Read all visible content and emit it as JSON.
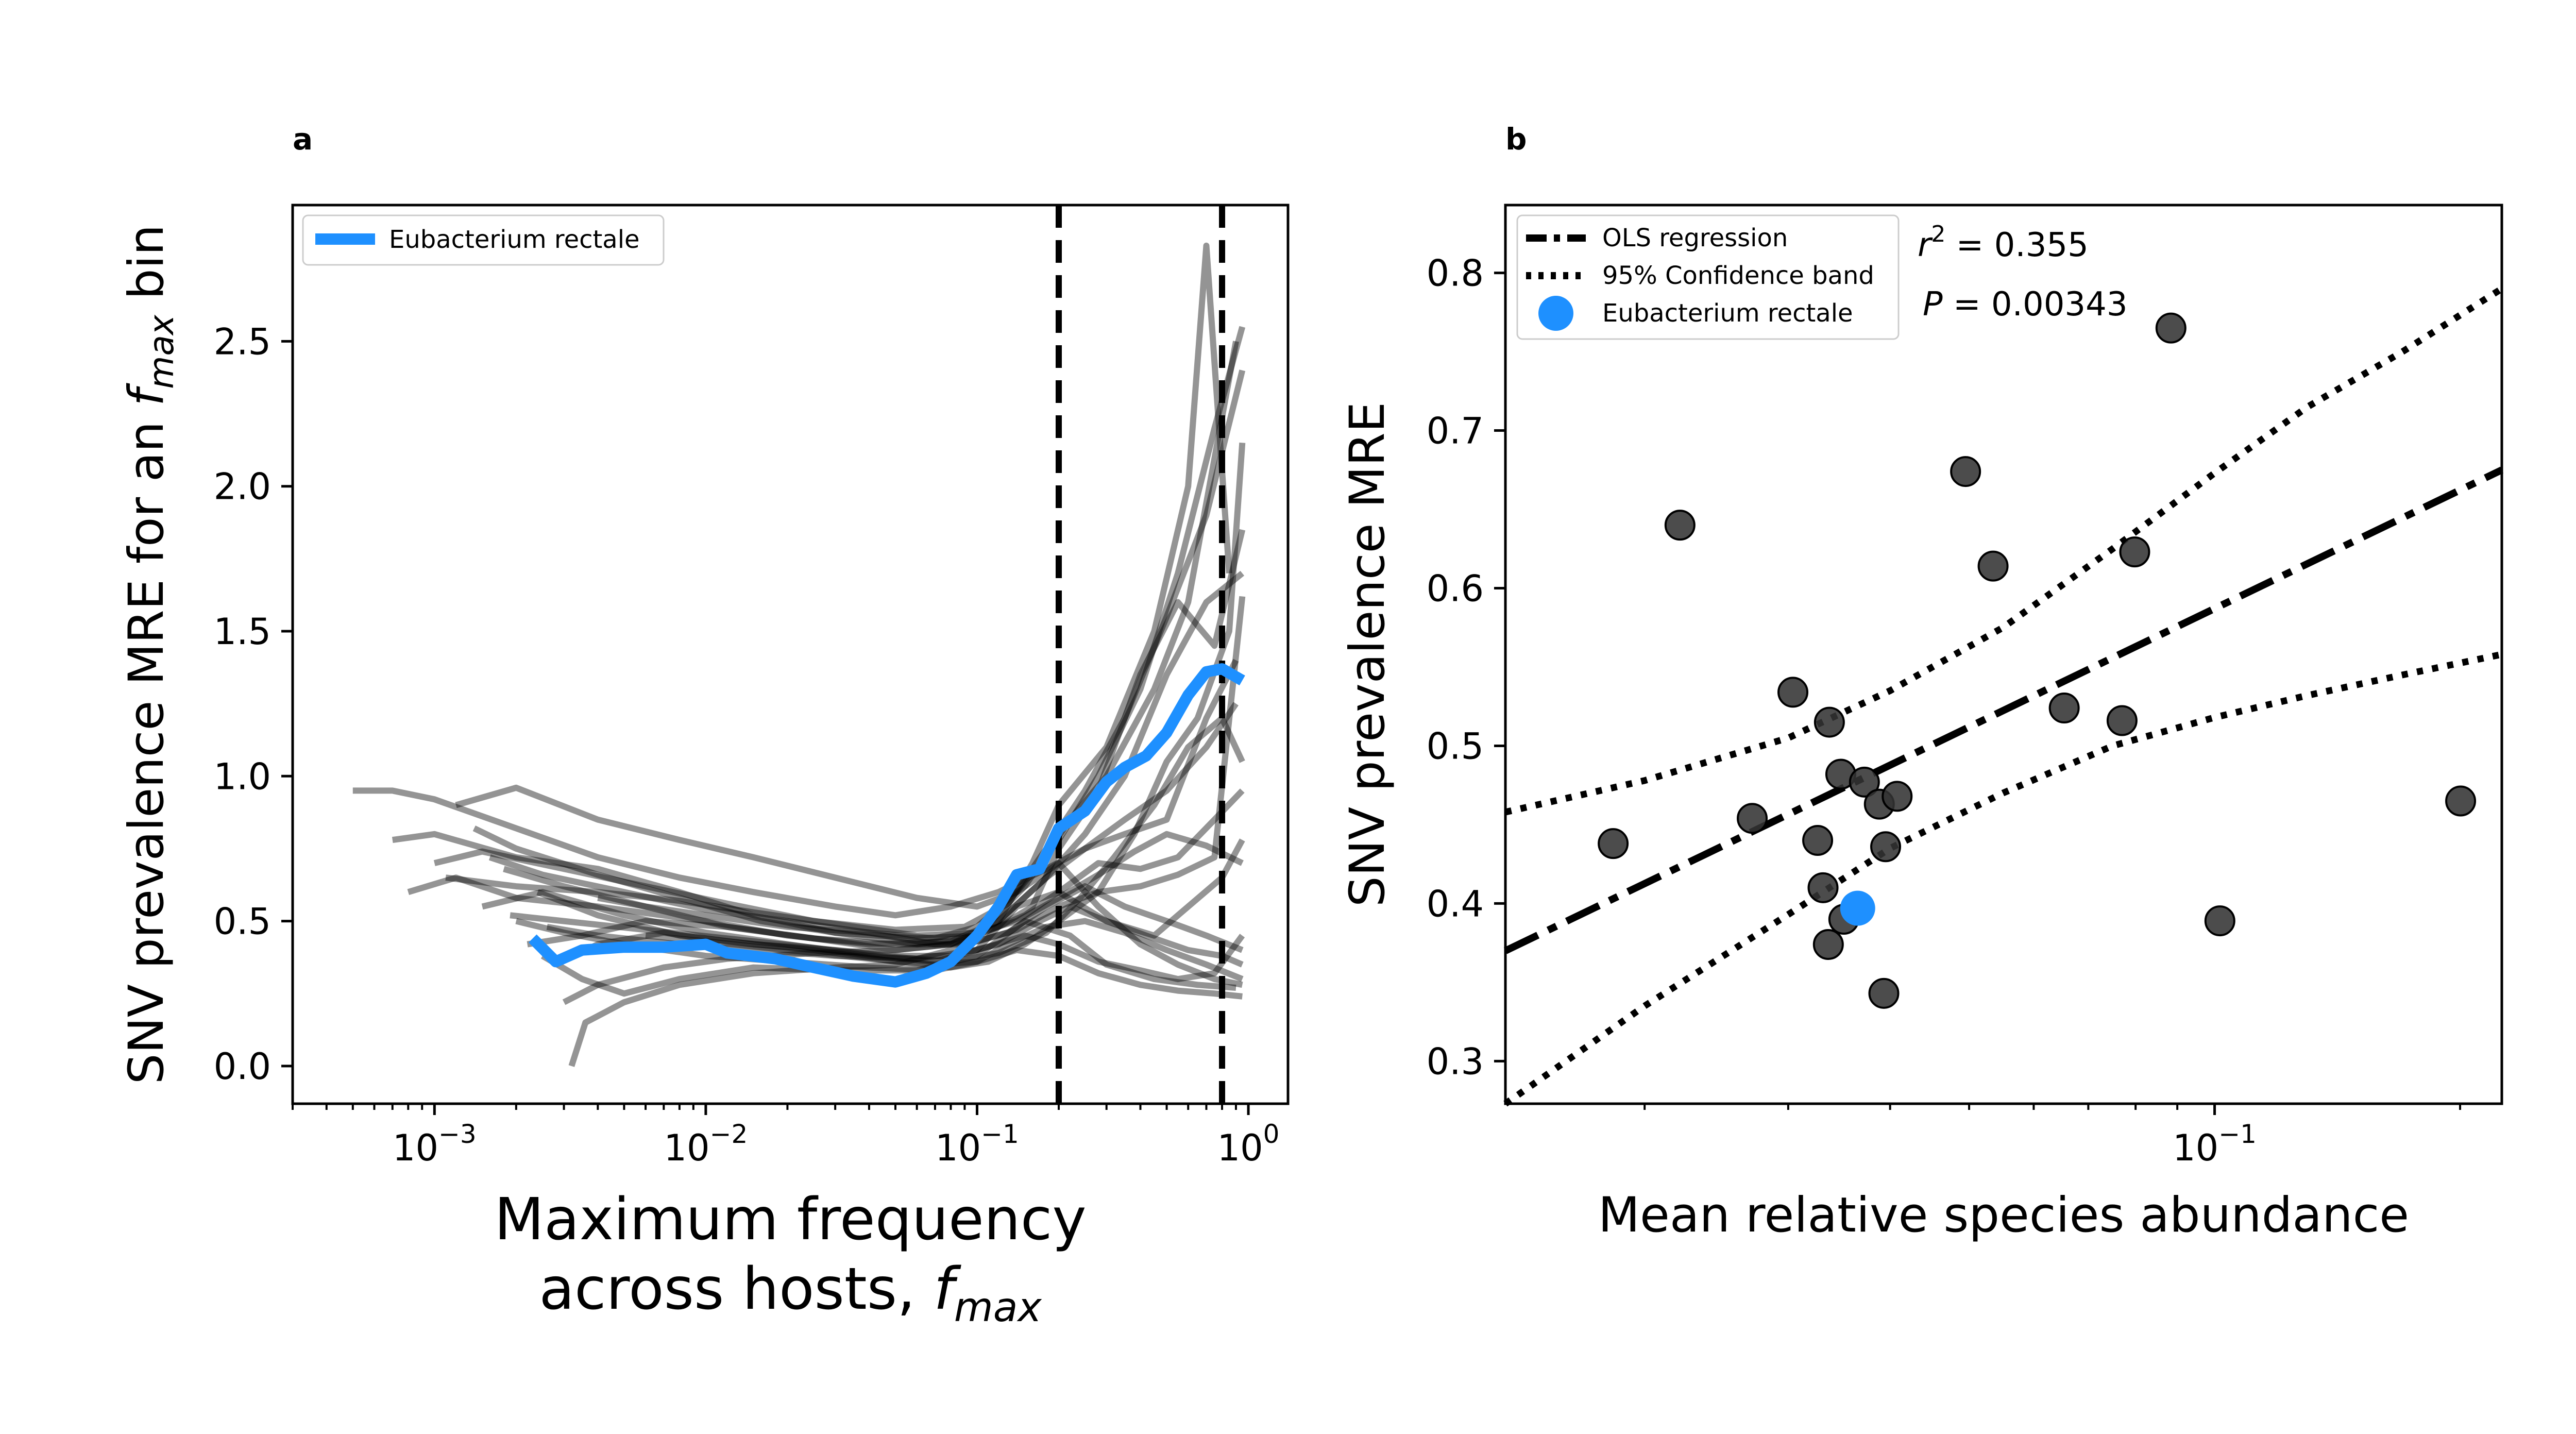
{
  "colors": {
    "highlight": "#1E90FF",
    "gray_lines": "#000000",
    "points": "#333333",
    "axes": "#000000"
  },
  "panel_a": {
    "label": "a",
    "ylabel_prefix": "SNV prevalence MRE for an ",
    "ylabel_var": "f",
    "ylabel_sub": "max",
    "ylabel_suffix": " bin",
    "xlabel_line1": "Maximum frequency",
    "xlabel_line2_prefix": "across hosts, ",
    "xlabel_var": "f",
    "xlabel_sub": "max",
    "legend_label": "Eubacterium rectale"
  },
  "panel_b": {
    "label": "b",
    "ylabel": "SNV prevalence MRE",
    "xlabel": "Mean relative species abundance",
    "legend_ols": "OLS regression",
    "legend_ci": "95% Confidence band",
    "legend_species": "Eubacterium rectale",
    "r2_prefix": "r",
    "r2_value": " = 0.355",
    "p_prefix": "P",
    "p_value": " = 0.00343"
  },
  "chart_data": [
    {
      "type": "line",
      "xscale": "log",
      "xlim": [
        0.0003,
        1.4
      ],
      "ylim": [
        -0.13,
        2.97
      ],
      "xticks": [
        0.001,
        0.01,
        0.1,
        1
      ],
      "xtick_labels": [
        {
          "base": "10",
          "exp": "−3"
        },
        {
          "base": "10",
          "exp": "−2"
        },
        {
          "base": "10",
          "exp": "−1"
        },
        {
          "base": "10",
          "exp": "0"
        }
      ],
      "yticks": [
        0.0,
        0.5,
        1.0,
        1.5,
        2.0,
        2.5
      ],
      "ytick_labels": [
        "0.0",
        "0.5",
        "1.0",
        "1.5",
        "2.0",
        "2.5"
      ],
      "vlines": [
        0.2,
        0.8
      ],
      "grid": false,
      "legend_position": "top-left",
      "highlight_series": {
        "name": "Eubacterium rectale",
        "x": [
          0.0023,
          0.0028,
          0.0035,
          0.005,
          0.007,
          0.01,
          0.012,
          0.018,
          0.025,
          0.035,
          0.05,
          0.065,
          0.08,
          0.1,
          0.12,
          0.14,
          0.17,
          0.2,
          0.25,
          0.3,
          0.35,
          0.42,
          0.5,
          0.6,
          0.7,
          0.8,
          0.95
        ],
        "y": [
          0.44,
          0.36,
          0.4,
          0.41,
          0.41,
          0.42,
          0.39,
          0.37,
          0.34,
          0.31,
          0.29,
          0.32,
          0.36,
          0.45,
          0.55,
          0.66,
          0.68,
          0.82,
          0.88,
          0.98,
          1.03,
          1.07,
          1.15,
          1.28,
          1.36,
          1.37,
          1.33
        ]
      },
      "background_series": [
        {
          "x": [
            0.0005,
            0.0007,
            0.001,
            0.002,
            0.004,
            0.008,
            0.015,
            0.03,
            0.05,
            0.08,
            0.12,
            0.18,
            0.25,
            0.35,
            0.5,
            0.7,
            0.9
          ],
          "y": [
            0.95,
            0.95,
            0.92,
            0.82,
            0.72,
            0.65,
            0.6,
            0.55,
            0.52,
            0.55,
            0.6,
            0.68,
            0.75,
            0.85,
            0.95,
            1.1,
            1.25
          ]
        },
        {
          "x": [
            0.0007,
            0.001,
            0.002,
            0.004,
            0.008,
            0.015,
            0.03,
            0.06,
            0.1,
            0.15,
            0.22,
            0.3,
            0.45,
            0.6,
            0.9
          ],
          "y": [
            0.78,
            0.8,
            0.72,
            0.68,
            0.6,
            0.52,
            0.46,
            0.42,
            0.45,
            0.62,
            0.85,
            1.0,
            1.3,
            1.6,
            2.5
          ]
        },
        {
          "x": [
            0.0008,
            0.0012,
            0.002,
            0.004,
            0.01,
            0.02,
            0.04,
            0.08,
            0.12,
            0.16,
            0.2,
            0.3,
            0.45,
            0.6,
            0.7,
            0.85
          ],
          "y": [
            0.6,
            0.65,
            0.58,
            0.55,
            0.5,
            0.45,
            0.42,
            0.43,
            0.5,
            0.7,
            0.9,
            1.1,
            1.5,
            2.0,
            2.83,
            1.7
          ]
        },
        {
          "x": [
            0.001,
            0.0015,
            0.003,
            0.006,
            0.012,
            0.025,
            0.05,
            0.09,
            0.13,
            0.18,
            0.25,
            0.35,
            0.5,
            0.7,
            0.95
          ],
          "y": [
            0.7,
            0.74,
            0.68,
            0.62,
            0.56,
            0.5,
            0.47,
            0.48,
            0.56,
            0.75,
            0.95,
            1.2,
            1.55,
            1.9,
            2.4
          ]
        },
        {
          "x": [
            0.0012,
            0.002,
            0.004,
            0.008,
            0.015,
            0.03,
            0.06,
            0.1,
            0.14,
            0.2,
            0.28,
            0.4,
            0.55,
            0.75,
            0.95
          ],
          "y": [
            0.9,
            0.96,
            0.85,
            0.78,
            0.72,
            0.65,
            0.58,
            0.55,
            0.6,
            0.78,
            1.0,
            1.3,
            1.7,
            2.2,
            2.55
          ]
        },
        {
          "x": [
            0.0015,
            0.0025,
            0.005,
            0.01,
            0.02,
            0.04,
            0.07,
            0.1,
            0.14,
            0.2,
            0.3,
            0.45,
            0.6,
            0.8,
            0.95
          ],
          "y": [
            0.55,
            0.6,
            0.52,
            0.46,
            0.42,
            0.38,
            0.36,
            0.4,
            0.55,
            0.6,
            0.5,
            0.45,
            0.55,
            0.65,
            0.78
          ]
        },
        {
          "x": [
            0.0018,
            0.003,
            0.006,
            0.012,
            0.025,
            0.05,
            0.08,
            0.12,
            0.18,
            0.25,
            0.35,
            0.5,
            0.7,
            0.9
          ],
          "y": [
            0.68,
            0.62,
            0.55,
            0.48,
            0.44,
            0.4,
            0.42,
            0.5,
            0.65,
            0.75,
            0.8,
            0.85,
            1.2,
            1.4
          ]
        },
        {
          "x": [
            0.002,
            0.003,
            0.005,
            0.01,
            0.02,
            0.04,
            0.07,
            0.1,
            0.13,
            0.18,
            0.25,
            0.35,
            0.5,
            0.7,
            0.95
          ],
          "y": [
            0.5,
            0.46,
            0.42,
            0.38,
            0.36,
            0.34,
            0.33,
            0.36,
            0.42,
            0.48,
            0.5,
            0.46,
            0.4,
            0.35,
            0.3
          ]
        },
        {
          "x": [
            0.0022,
            0.0035,
            0.006,
            0.012,
            0.025,
            0.05,
            0.09,
            0.13,
            0.18,
            0.25,
            0.35,
            0.5,
            0.7,
            0.95
          ],
          "y": [
            0.42,
            0.45,
            0.5,
            0.48,
            0.44,
            0.42,
            0.42,
            0.46,
            0.55,
            0.62,
            0.55,
            0.5,
            0.45,
            0.4
          ]
        },
        {
          "x": [
            0.0025,
            0.0035,
            0.005,
            0.008,
            0.015,
            0.03,
            0.06,
            0.1,
            0.15,
            0.22,
            0.3,
            0.45,
            0.65,
            0.9
          ],
          "y": [
            0.38,
            0.3,
            0.25,
            0.3,
            0.34,
            0.33,
            0.33,
            0.38,
            0.5,
            0.45,
            0.35,
            0.3,
            0.28,
            0.27
          ]
        },
        {
          "x": [
            0.0032,
            0.0036,
            0.005,
            0.008,
            0.015,
            0.03,
            0.05,
            0.08,
            0.12,
            0.18,
            0.25,
            0.35,
            0.5,
            0.7,
            0.95
          ],
          "y": [
            0.0,
            0.15,
            0.22,
            0.28,
            0.32,
            0.34,
            0.35,
            0.4,
            0.5,
            0.65,
            0.8,
            1.0,
            1.35,
            1.6,
            1.7
          ]
        },
        {
          "x": [
            0.003,
            0.004,
            0.007,
            0.012,
            0.025,
            0.05,
            0.08,
            0.12,
            0.16,
            0.2,
            0.28,
            0.4,
            0.55,
            0.75,
            0.95
          ],
          "y": [
            0.22,
            0.28,
            0.34,
            0.37,
            0.39,
            0.4,
            0.42,
            0.48,
            0.55,
            0.75,
            0.95,
            1.35,
            1.6,
            1.45,
            1.85
          ]
        },
        {
          "x": [
            0.0014,
            0.002,
            0.004,
            0.008,
            0.016,
            0.03,
            0.06,
            0.1,
            0.15,
            0.2,
            0.28,
            0.4,
            0.55,
            0.75,
            0.95
          ],
          "y": [
            0.82,
            0.75,
            0.66,
            0.58,
            0.5,
            0.46,
            0.44,
            0.45,
            0.52,
            0.6,
            0.7,
            0.68,
            0.72,
            0.85,
            0.95
          ]
        },
        {
          "x": [
            0.0016,
            0.0025,
            0.005,
            0.01,
            0.02,
            0.04,
            0.07,
            0.1,
            0.14,
            0.2,
            0.28,
            0.4,
            0.55,
            0.75,
            0.95
          ],
          "y": [
            0.72,
            0.66,
            0.6,
            0.54,
            0.5,
            0.46,
            0.42,
            0.43,
            0.47,
            0.55,
            0.6,
            0.62,
            0.66,
            0.72,
            1.62
          ]
        },
        {
          "x": [
            0.0024,
            0.004,
            0.008,
            0.015,
            0.03,
            0.05,
            0.08,
            0.12,
            0.17,
            0.22,
            0.3,
            0.42,
            0.6,
            0.8,
            0.95
          ],
          "y": [
            0.6,
            0.52,
            0.45,
            0.42,
            0.4,
            0.38,
            0.38,
            0.42,
            0.5,
            0.55,
            0.5,
            0.45,
            0.4,
            0.38,
            0.35
          ]
        },
        {
          "x": [
            0.0028,
            0.004,
            0.007,
            0.012,
            0.025,
            0.05,
            0.08,
            0.11,
            0.15,
            0.2,
            0.28,
            0.38,
            0.5,
            0.65,
            0.85,
            0.95
          ],
          "y": [
            0.35,
            0.42,
            0.46,
            0.43,
            0.4,
            0.36,
            0.34,
            0.36,
            0.42,
            0.5,
            0.6,
            0.8,
            1.05,
            1.2,
            1.5,
            2.15
          ]
        },
        {
          "x": [
            0.004,
            0.006,
            0.01,
            0.02,
            0.04,
            0.07,
            0.1,
            0.14,
            0.2,
            0.28,
            0.4,
            0.55,
            0.75,
            0.95
          ],
          "y": [
            0.58,
            0.55,
            0.52,
            0.48,
            0.46,
            0.44,
            0.48,
            0.6,
            0.7,
            0.55,
            0.42,
            0.35,
            0.3,
            0.28
          ]
        },
        {
          "x": [
            0.006,
            0.01,
            0.02,
            0.04,
            0.07,
            0.1,
            0.14,
            0.2,
            0.28,
            0.4,
            0.55,
            0.75,
            0.95
          ],
          "y": [
            0.45,
            0.43,
            0.4,
            0.37,
            0.35,
            0.36,
            0.4,
            0.38,
            0.32,
            0.28,
            0.26,
            0.25,
            0.24
          ]
        },
        {
          "x": [
            0.0019,
            0.003,
            0.006,
            0.012,
            0.024,
            0.045,
            0.08,
            0.12,
            0.18,
            0.24,
            0.32,
            0.45,
            0.6,
            0.8,
            0.95
          ],
          "y": [
            0.52,
            0.5,
            0.47,
            0.44,
            0.41,
            0.38,
            0.36,
            0.39,
            0.46,
            0.58,
            0.72,
            0.9,
            1.1,
            1.2,
            1.05
          ]
        },
        {
          "x": [
            0.0011,
            0.002,
            0.004,
            0.008,
            0.015,
            0.03,
            0.06,
            0.1,
            0.14,
            0.2,
            0.28,
            0.38,
            0.5,
            0.7,
            0.95
          ],
          "y": [
            0.65,
            0.62,
            0.6,
            0.57,
            0.53,
            0.49,
            0.45,
            0.46,
            0.5,
            0.58,
            0.66,
            0.74,
            0.8,
            0.76,
            0.7
          ]
        },
        {
          "x": [
            0.0026,
            0.004,
            0.008,
            0.016,
            0.03,
            0.06,
            0.1,
            0.15,
            0.2,
            0.28,
            0.4,
            0.55,
            0.75,
            0.95
          ],
          "y": [
            0.48,
            0.45,
            0.42,
            0.4,
            0.38,
            0.37,
            0.4,
            0.45,
            0.42,
            0.36,
            0.33,
            0.3,
            0.32,
            0.45
          ]
        }
      ]
    },
    {
      "type": "scatter",
      "xscale": "log",
      "xlim": [
        0.0135,
        0.225
      ],
      "ylim": [
        0.273,
        0.843
      ],
      "xticks": [
        0.1
      ],
      "xtick_labels": [
        {
          "base": "10",
          "exp": "−1"
        }
      ],
      "yticks": [
        0.3,
        0.4,
        0.5,
        0.6,
        0.7,
        0.8
      ],
      "ytick_labels": [
        "0.3",
        "0.4",
        "0.5",
        "0.6",
        "0.7",
        "0.8"
      ],
      "grid": false,
      "legend_position": "top-left",
      "points": {
        "x": [
          0.0183,
          0.0221,
          0.0271,
          0.0304,
          0.0326,
          0.0331,
          0.0336,
          0.0337,
          0.0348,
          0.0351,
          0.0372,
          0.0388,
          0.0393,
          0.0395,
          0.0408,
          0.0495,
          0.0535,
          0.0654,
          0.077,
          0.0798,
          0.0884,
          0.1015,
          0.2003
        ],
        "y": [
          0.438,
          0.64,
          0.454,
          0.534,
          0.44,
          0.41,
          0.374,
          0.515,
          0.482,
          0.39,
          0.477,
          0.463,
          0.343,
          0.436,
          0.468,
          0.674,
          0.614,
          0.524,
          0.516,
          0.623,
          0.765,
          0.389,
          0.465
        ]
      },
      "highlight_point": {
        "name": "Eubacterium rectale",
        "x": 0.0365,
        "y": 0.397
      },
      "ols_line": {
        "x": [
          0.0135,
          0.225
        ],
        "y": [
          0.37,
          0.675
        ]
      },
      "ci_upper": {
        "x": [
          0.0135,
          0.02,
          0.03,
          0.04,
          0.055,
          0.075,
          0.1,
          0.13,
          0.17,
          0.225
        ],
        "y": [
          0.458,
          0.478,
          0.505,
          0.535,
          0.575,
          0.625,
          0.673,
          0.715,
          0.75,
          0.79
        ]
      },
      "ci_lower": {
        "x": [
          0.0135,
          0.02,
          0.03,
          0.04,
          0.055,
          0.075,
          0.1,
          0.13,
          0.17,
          0.225
        ],
        "y": [
          0.273,
          0.335,
          0.393,
          0.435,
          0.47,
          0.5,
          0.518,
          0.532,
          0.545,
          0.558
        ]
      },
      "r_squared": 0.355,
      "p_value": 0.00343
    }
  ]
}
